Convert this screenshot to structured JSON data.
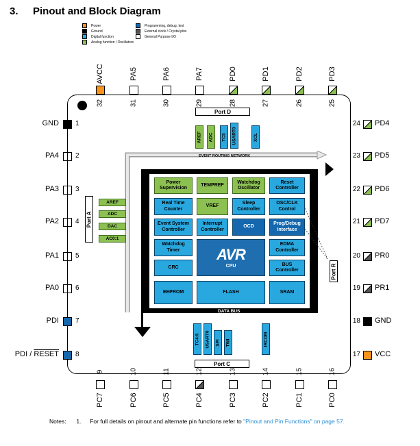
{
  "heading": {
    "number": "3.",
    "title": "Pinout and Block Diagram"
  },
  "legend": [
    {
      "label": "Power",
      "color": "#f7941d"
    },
    {
      "label": "Ground",
      "color": "#000000"
    },
    {
      "label": "Digital function",
      "color": "#29a8e0"
    },
    {
      "label": "Analog function / Oscillators",
      "color": "#8cc152"
    },
    {
      "label": "Programming, debug, test",
      "color": "#1568ae"
    },
    {
      "label": "External clock / Crystal pins",
      "color": "#555555"
    },
    {
      "label": "General Purpose I/O",
      "color": "#ffffff"
    }
  ],
  "pins_top": [
    {
      "num": "32",
      "name": "AVCC"
    },
    {
      "num": "31",
      "name": "PA5"
    },
    {
      "num": "30",
      "name": "PA6"
    },
    {
      "num": "29",
      "name": "PA7"
    },
    {
      "num": "28",
      "name": "PD0"
    },
    {
      "num": "27",
      "name": "PD1"
    },
    {
      "num": "26",
      "name": "PD2"
    },
    {
      "num": "25",
      "name": "PD3"
    }
  ],
  "pins_left": [
    {
      "num": "1",
      "name": "GND"
    },
    {
      "num": "2",
      "name": "PA4"
    },
    {
      "num": "3",
      "name": "PA3"
    },
    {
      "num": "4",
      "name": "PA2"
    },
    {
      "num": "5",
      "name": "PA1"
    },
    {
      "num": "6",
      "name": "PA0"
    },
    {
      "num": "7",
      "name": "PDI"
    },
    {
      "num": "8",
      "name": "PDI / RESET"
    }
  ],
  "pins_right": [
    {
      "num": "24",
      "name": "PD4"
    },
    {
      "num": "23",
      "name": "PD5"
    },
    {
      "num": "22",
      "name": "PD6"
    },
    {
      "num": "21",
      "name": "PD7"
    },
    {
      "num": "20",
      "name": "PR0"
    },
    {
      "num": "19",
      "name": "PR1"
    },
    {
      "num": "18",
      "name": "GND"
    },
    {
      "num": "17",
      "name": "VCC"
    }
  ],
  "pins_bottom": [
    {
      "num": "9",
      "name": "PC7"
    },
    {
      "num": "10",
      "name": "PC6"
    },
    {
      "num": "11",
      "name": "PC5"
    },
    {
      "num": "12",
      "name": "PC4"
    },
    {
      "num": "13",
      "name": "PC3"
    },
    {
      "num": "14",
      "name": "PC2"
    },
    {
      "num": "15",
      "name": "PC1"
    },
    {
      "num": "16",
      "name": "PC0"
    }
  ],
  "ports": {
    "port_d": "Port D",
    "port_a": "Port A",
    "port_r": "Port R",
    "port_c": "Port C"
  },
  "buses": {
    "event_routing": "EVENT ROUTING NETWORK",
    "data_bus_top": "DATA BUS",
    "data_bus_bottom": "DATA BUS"
  },
  "port_d_functions": [
    "AREF",
    "ADC",
    "TC5",
    "USART0",
    "XCL"
  ],
  "port_c_functions": [
    "TC4:5",
    "USART0",
    "SPI",
    "TWI",
    "IRCOM"
  ],
  "analog_blocks": [
    "AREF",
    "ADC",
    "DAC",
    "AC0:1"
  ],
  "blocks": {
    "power_supervision": "Power Supervision",
    "tempref": "TEMPREF",
    "watchdog_osc": "Watchdog Oscillator",
    "reset": "Reset Controller",
    "rtc": "Real Time Counter",
    "vref": "VREF",
    "sleep": "Sleep Controller",
    "osc": "OSC/CLK Control",
    "event_system": "Event System Controller",
    "interrupt": "Interrupt Controller",
    "ocd": "OCD",
    "progdebug": "Prog/Debug Interface",
    "watchdog_timer": "Watchdog Timer",
    "edma": "EDMA Controller",
    "crc": "CRC",
    "cpu_logo": "AVR",
    "cpu": "CPU",
    "bus": "BUS Controller",
    "eeprom": "EEPROM",
    "flash": "FLASH",
    "sram": "SRAM"
  },
  "notes": {
    "prefix": "Notes:",
    "number": "1.",
    "text": "For full details on pinout and alternate pin functions refer to ",
    "link": "\"Pinout and Pin Functions\" on page 57."
  }
}
